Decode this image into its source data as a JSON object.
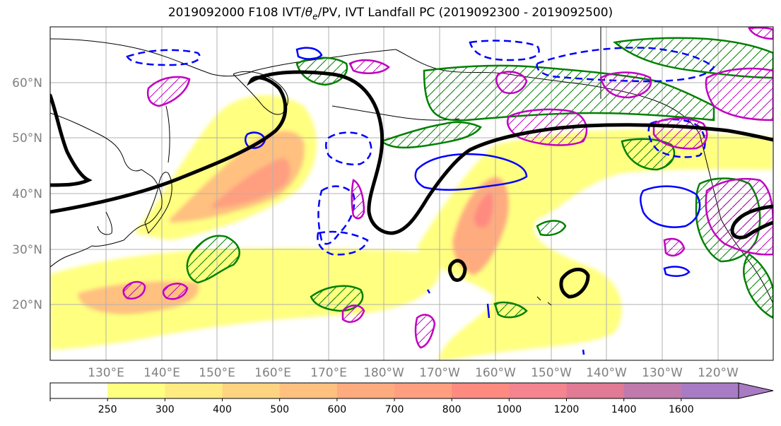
{
  "title": {
    "prefix": "2019092000 F108 IVT/",
    "theta": "θ",
    "theta_sub": "e",
    "suffix": "/PV, IVT Landfall PC (2019092300 - 2019092500)"
  },
  "axes": {
    "lat_labels": [
      "60°N",
      "50°N",
      "40°N",
      "30°N",
      "20°N"
    ],
    "lon_labels": [
      "130°E",
      "140°E",
      "150°E",
      "160°E",
      "170°E",
      "180°W",
      "170°W",
      "160°W",
      "150°W",
      "140°W",
      "130°W",
      "120°W"
    ],
    "grid": true
  },
  "colorbar": {
    "ticks": [
      "250",
      "300",
      "400",
      "500",
      "600",
      "700",
      "800",
      "1000",
      "1200",
      "1400",
      "1600"
    ],
    "colors": [
      "#ffff80",
      "#ffeb80",
      "#ffd480",
      "#ffc080",
      "#ffab80",
      "#ff9f80",
      "#ff8a80",
      "#f48590",
      "#e07a95",
      "#c07aab",
      "#a87bc4"
    ],
    "under_color": "#ffffff",
    "extend": "max"
  },
  "contours": {
    "theta_e_color": "#000000",
    "pv_positive_color": "#008000",
    "pv_negative_color": "#0000ff",
    "landfall_color": "#c000c0"
  }
}
